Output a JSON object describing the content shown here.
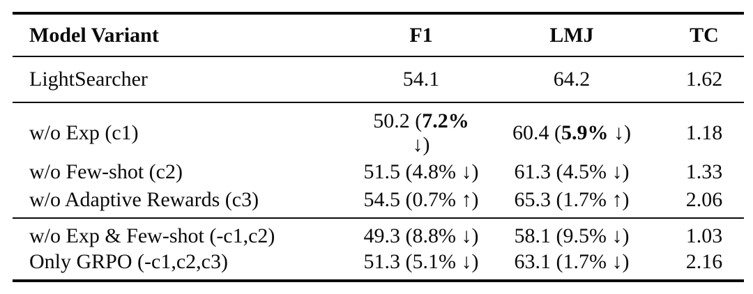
{
  "colors": {
    "text": "#0a0a0a",
    "rule": "#0a0a0a",
    "background": "#ffffff"
  },
  "table": {
    "columns": [
      {
        "key": "variant",
        "label": "Model Variant"
      },
      {
        "key": "f1",
        "label": "F1"
      },
      {
        "key": "lmj",
        "label": "LMJ"
      },
      {
        "key": "tc",
        "label": "TC"
      }
    ],
    "groups": [
      {
        "rows": [
          {
            "variant": "LightSearcher",
            "f1": {
              "value": "54.1"
            },
            "lmj": {
              "value": "64.2"
            },
            "tc": "1.62"
          }
        ]
      },
      {
        "rows": [
          {
            "variant": "w/o Exp (c1)",
            "f1": {
              "value": "50.2",
              "pct": "7.2%",
              "arrow": "↓",
              "pct_bold": true
            },
            "lmj": {
              "value": "60.4",
              "pct": "5.9%",
              "arrow": "↓",
              "pct_bold": true
            },
            "tc": "1.18"
          },
          {
            "variant": "w/o Few-shot (c2)",
            "f1": {
              "value": "51.5",
              "pct": "4.8%",
              "arrow": "↓"
            },
            "lmj": {
              "value": "61.3",
              "pct": "4.5%",
              "arrow": "↓"
            },
            "tc": "1.33"
          },
          {
            "variant": "w/o Adaptive Rewards (c3)",
            "f1": {
              "value": "54.5",
              "pct": "0.7%",
              "arrow": "↑"
            },
            "lmj": {
              "value": "65.3",
              "pct": "1.7%",
              "arrow": "↑"
            },
            "tc": "2.06"
          }
        ]
      },
      {
        "rows": [
          {
            "variant": "w/o Exp & Few-shot (-c1,c2)",
            "f1": {
              "value": "49.3",
              "pct": "8.8%",
              "arrow": "↓"
            },
            "lmj": {
              "value": "58.1",
              "pct": "9.5%",
              "arrow": "↓"
            },
            "tc": "1.03"
          },
          {
            "variant": "Only GRPO (-c1,c2,c3)",
            "f1": {
              "value": "51.3",
              "pct": "5.1%",
              "arrow": "↓"
            },
            "lmj": {
              "value": "63.1",
              "pct": "1.7%",
              "arrow": "↓"
            },
            "tc": "2.16"
          }
        ]
      }
    ]
  }
}
